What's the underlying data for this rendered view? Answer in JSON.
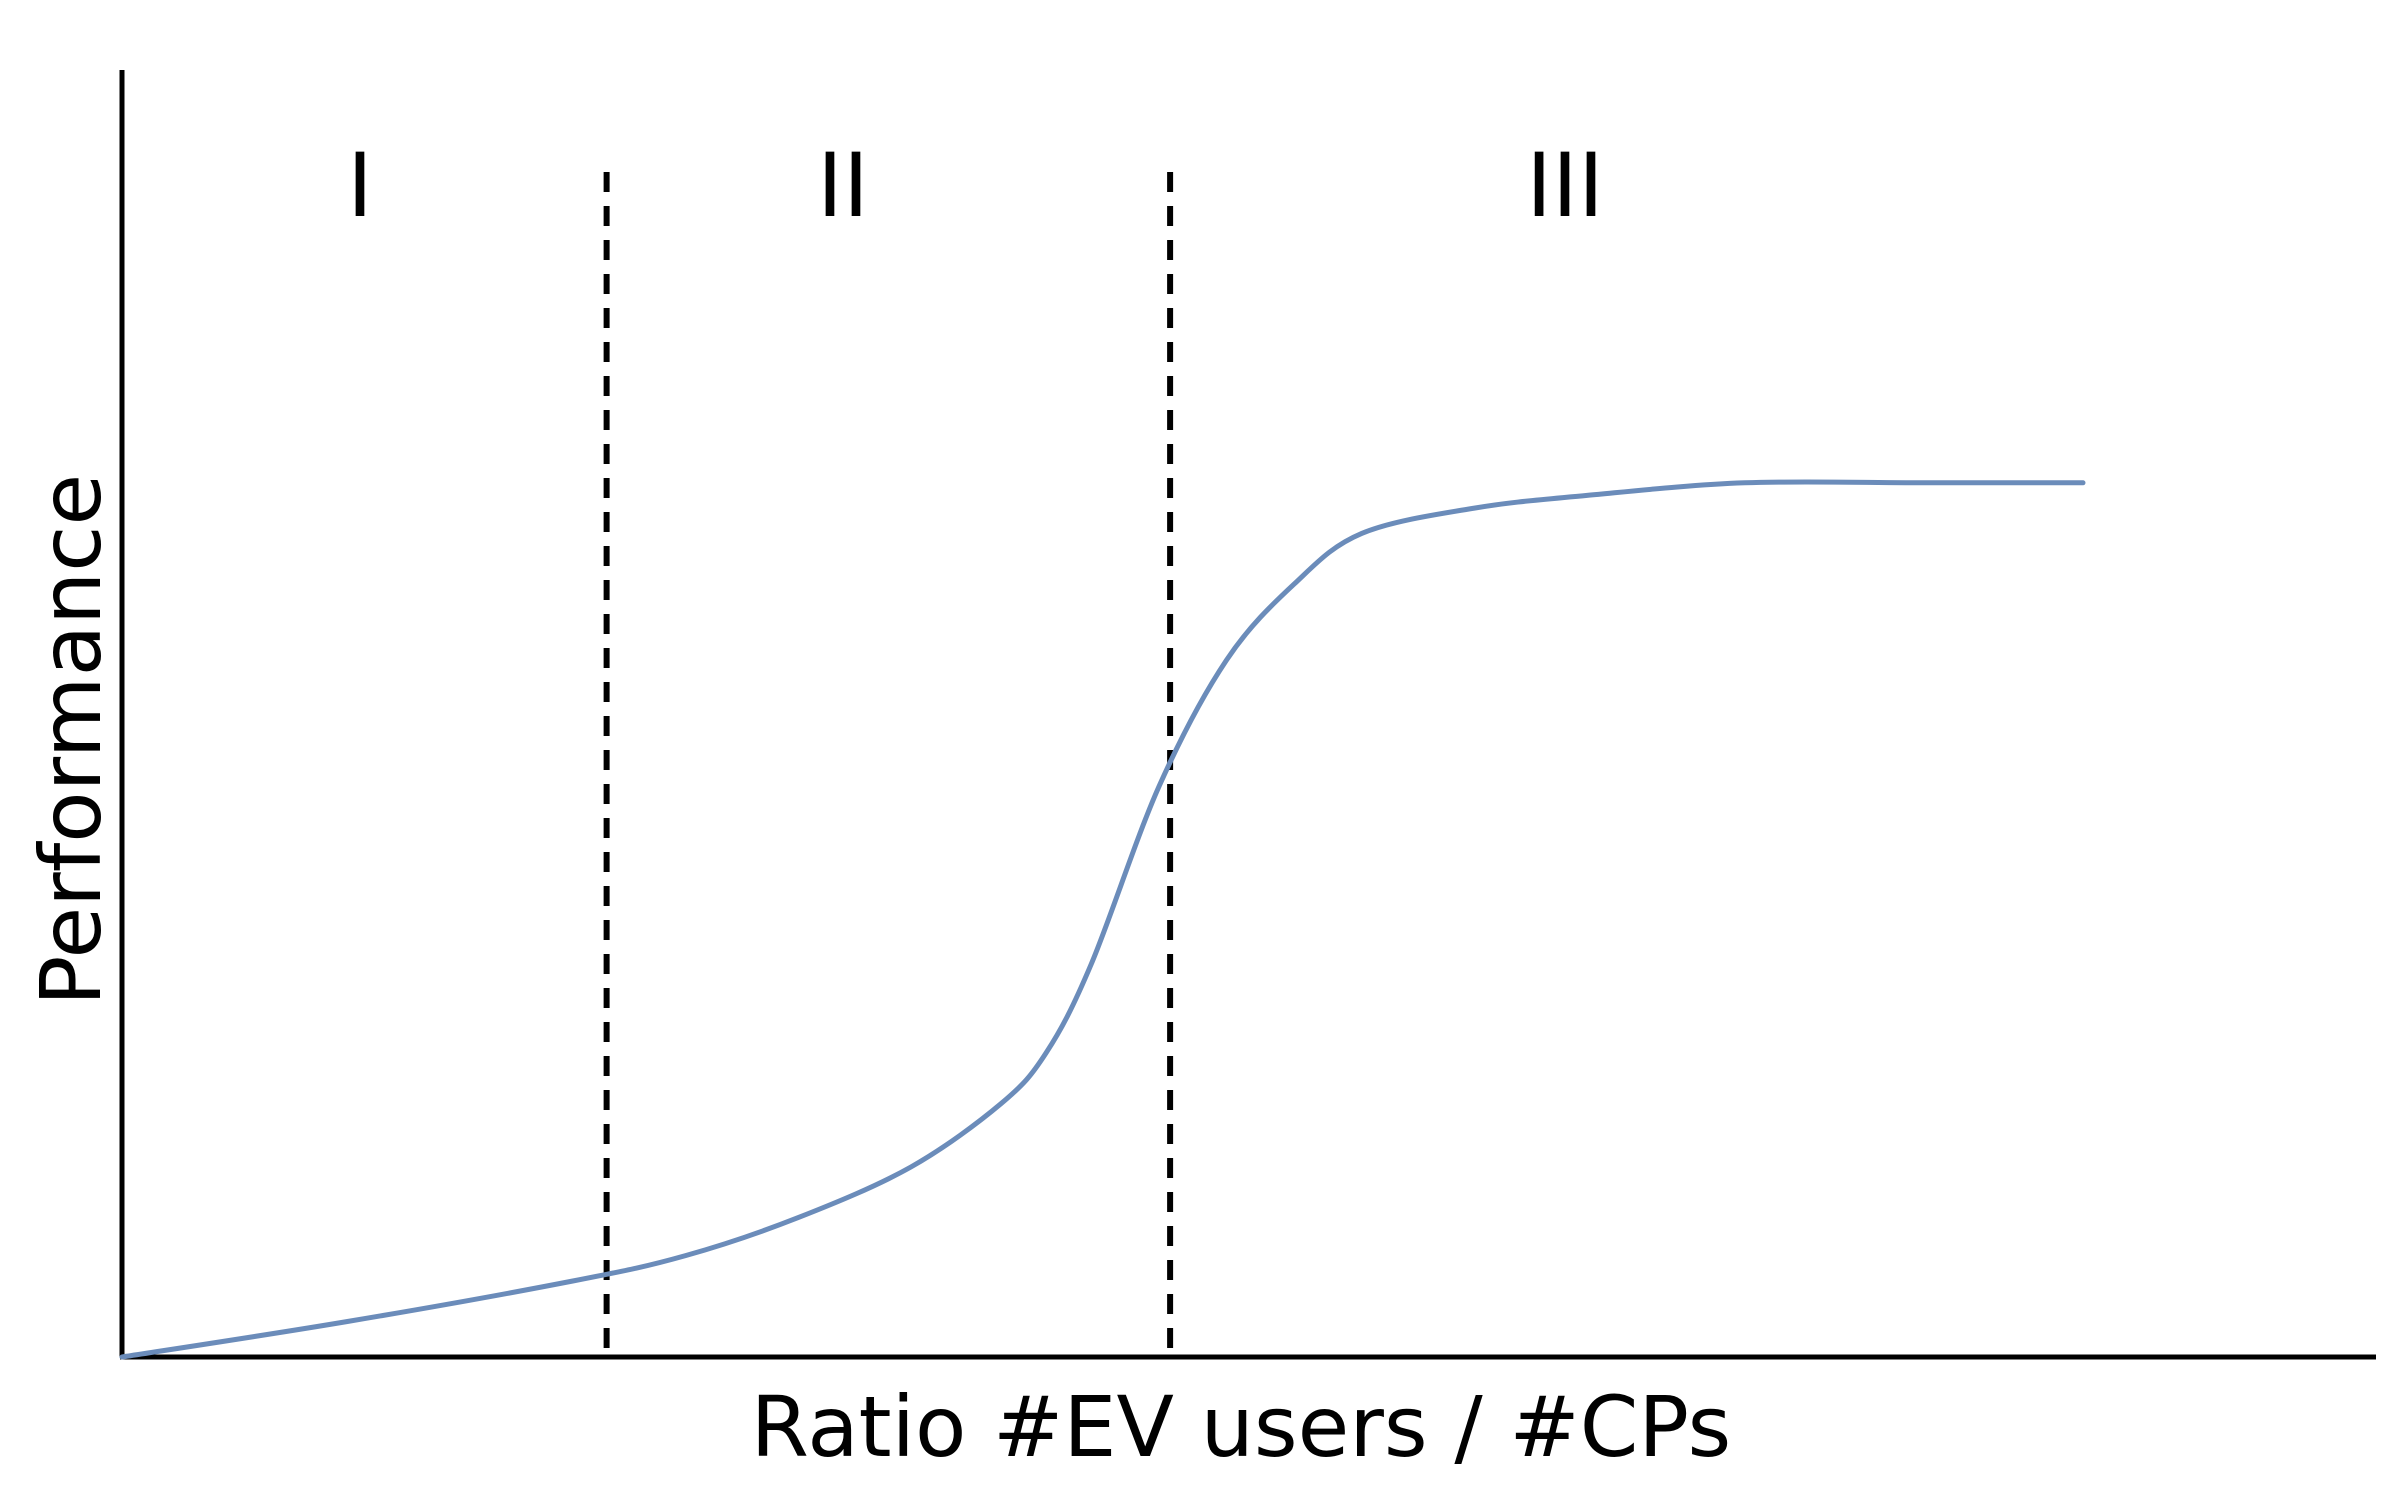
{
  "chart_data": {
    "type": "line",
    "title": "",
    "xlabel": "Ratio #EV users / #CPs",
    "ylabel": "Performance",
    "grid": false,
    "legend": "none",
    "regions": [
      "I",
      "II",
      "III"
    ],
    "series": [
      {
        "color": "#6b8cba",
        "x": [
          0,
          0.1,
          0.2,
          0.25,
          0.3,
          0.35,
          0.39,
          0.41,
          0.43,
          0.46,
          0.49,
          0.52,
          0.55,
          0.6,
          0.65,
          0.72,
          0.8,
          0.87
        ],
        "y": [
          0,
          0.028,
          0.06,
          0.08,
          0.11,
          0.15,
          0.2,
          0.24,
          0.31,
          0.45,
          0.55,
          0.61,
          0.65,
          0.67,
          0.68,
          0.69,
          0.69,
          0.69
        ]
      }
    ],
    "dividers_x": [
      0.215,
      0.465
    ],
    "xlim": [
      0,
      1
    ],
    "ylim": [
      0,
      1
    ]
  },
  "colors": {
    "curve": "#6b8cba",
    "axes": "#000000"
  }
}
